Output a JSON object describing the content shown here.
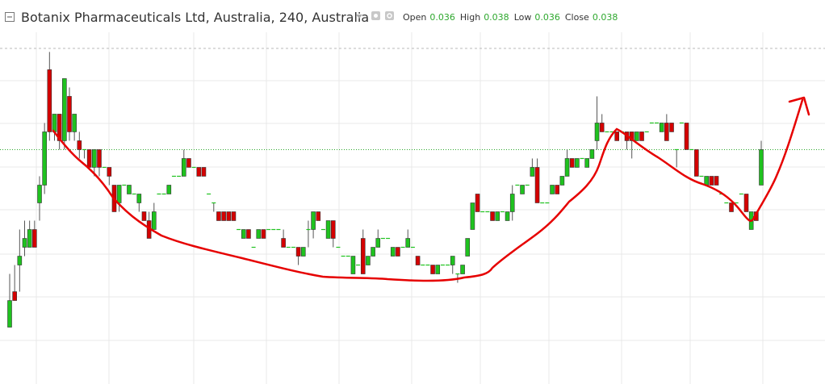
{
  "chart_data": {
    "type": "candlestick",
    "title": "Botanix Pharmaceuticals Ltd, Australia, 240, Australia",
    "legend": [
      {
        "label": "Open",
        "value": 0.036
      },
      {
        "label": "High",
        "value": 0.038
      },
      {
        "label": "Low",
        "value": 0.036
      },
      {
        "label": "Close",
        "value": 0.038
      }
    ],
    "up_color": "#1fc21f",
    "down_color": "#d40000",
    "value_color": "#2ea82e",
    "ylim": [
      0.0248,
      0.0437
    ],
    "ohlc": [
      [
        0.028,
        0.031,
        0.028,
        0.0295
      ],
      [
        0.03,
        0.0315,
        0.0295,
        0.0295
      ],
      [
        0.0315,
        0.0335,
        0.03,
        0.032
      ],
      [
        0.0325,
        0.034,
        0.032,
        0.033
      ],
      [
        0.0325,
        0.034,
        0.0325,
        0.0335
      ],
      [
        0.0335,
        0.034,
        0.0325,
        0.0325
      ],
      [
        0.035,
        0.0365,
        0.034,
        0.036
      ],
      [
        0.036,
        0.0395,
        0.0355,
        0.039
      ],
      [
        0.0425,
        0.0435,
        0.0385,
        0.039
      ],
      [
        0.039,
        0.04,
        0.0385,
        0.04
      ],
      [
        0.04,
        0.04,
        0.038,
        0.0385
      ],
      [
        0.0385,
        0.042,
        0.038,
        0.042
      ],
      [
        0.041,
        0.0415,
        0.0385,
        0.039
      ],
      [
        0.039,
        0.04,
        0.0385,
        0.04
      ],
      [
        0.0385,
        0.039,
        0.0375,
        0.038
      ],
      [
        0.038,
        0.038,
        0.0375,
        0.038
      ],
      [
        0.038,
        0.038,
        0.037,
        0.037
      ],
      [
        0.037,
        0.038,
        0.0365,
        0.038
      ],
      [
        0.038,
        0.038,
        0.0365,
        0.037
      ],
      [
        0.037,
        0.037,
        0.037,
        0.037
      ],
      [
        0.037,
        0.037,
        0.036,
        0.0365
      ],
      [
        0.036,
        0.036,
        0.0345,
        0.0345
      ],
      [
        0.035,
        0.036,
        0.0345,
        0.036
      ],
      [
        0.036,
        0.036,
        0.036,
        0.036
      ],
      [
        0.0355,
        0.036,
        0.0355,
        0.036
      ],
      [
        0.0355,
        0.0355,
        0.0355,
        0.0355
      ],
      [
        0.035,
        0.0355,
        0.0345,
        0.0355
      ],
      [
        0.0345,
        0.0345,
        0.034,
        0.034
      ],
      [
        0.034,
        0.0345,
        0.033,
        0.033
      ],
      [
        0.0335,
        0.035,
        0.0335,
        0.0345
      ],
      [
        0.0355,
        0.0355,
        0.0355,
        0.0355
      ],
      [
        0.0355,
        0.0355,
        0.0355,
        0.0355
      ],
      [
        0.0355,
        0.036,
        0.0355,
        0.036
      ],
      [
        0.0365,
        0.0365,
        0.0365,
        0.0365
      ],
      [
        0.0365,
        0.0365,
        0.0365,
        0.0365
      ],
      [
        0.0365,
        0.038,
        0.0365,
        0.0375
      ],
      [
        0.0375,
        0.0375,
        0.037,
        0.037
      ],
      [
        0.037,
        0.037,
        0.037,
        0.037
      ],
      [
        0.037,
        0.037,
        0.0365,
        0.0365
      ],
      [
        0.037,
        0.037,
        0.0365,
        0.0365
      ],
      [
        0.0355,
        0.0355,
        0.0355,
        0.0355
      ],
      [
        0.035,
        0.035,
        0.0345,
        0.035
      ],
      [
        0.0345,
        0.0345,
        0.034,
        0.034
      ],
      [
        0.0345,
        0.0345,
        0.034,
        0.034
      ],
      [
        0.0345,
        0.0345,
        0.034,
        0.034
      ],
      [
        0.0345,
        0.0345,
        0.034,
        0.034
      ],
      [
        0.0335,
        0.0335,
        0.0335,
        0.0335
      ],
      [
        0.033,
        0.0335,
        0.033,
        0.0335
      ],
      [
        0.0335,
        0.0335,
        0.033,
        0.033
      ],
      [
        0.0325,
        0.0325,
        0.0325,
        0.0325
      ],
      [
        0.033,
        0.0335,
        0.033,
        0.0335
      ],
      [
        0.0335,
        0.0335,
        0.033,
        0.033
      ],
      [
        0.0335,
        0.0335,
        0.0335,
        0.0335
      ],
      [
        0.0335,
        0.0335,
        0.0335,
        0.0335
      ],
      [
        0.0335,
        0.0335,
        0.0335,
        0.0335
      ],
      [
        0.033,
        0.0335,
        0.0325,
        0.0325
      ],
      [
        0.0325,
        0.0325,
        0.0325,
        0.0325
      ],
      [
        0.0325,
        0.0325,
        0.0325,
        0.0325
      ],
      [
        0.0325,
        0.0325,
        0.0315,
        0.032
      ],
      [
        0.032,
        0.0325,
        0.032,
        0.0325
      ],
      [
        0.0335,
        0.034,
        0.0325,
        0.0335
      ],
      [
        0.0335,
        0.0345,
        0.033,
        0.0345
      ],
      [
        0.0345,
        0.0345,
        0.034,
        0.034
      ],
      [
        0.0335,
        0.0335,
        0.0335,
        0.0335
      ],
      [
        0.033,
        0.034,
        0.033,
        0.034
      ],
      [
        0.034,
        0.034,
        0.0325,
        0.033
      ],
      [
        0.0325,
        0.0325,
        0.0325,
        0.0325
      ],
      [
        0.032,
        0.032,
        0.032,
        0.032
      ],
      [
        0.032,
        0.032,
        0.032,
        0.032
      ],
      [
        0.031,
        0.032,
        0.031,
        0.032
      ],
      [
        0.0315,
        0.0315,
        0.0315,
        0.0315
      ],
      [
        0.033,
        0.0335,
        0.031,
        0.031
      ],
      [
        0.0315,
        0.032,
        0.0315,
        0.032
      ],
      [
        0.032,
        0.0325,
        0.032,
        0.0325
      ],
      [
        0.0325,
        0.0335,
        0.0325,
        0.033
      ],
      [
        0.033,
        0.033,
        0.033,
        0.033
      ],
      [
        0.033,
        0.033,
        0.033,
        0.033
      ],
      [
        0.032,
        0.0325,
        0.032,
        0.0325
      ],
      [
        0.0325,
        0.0325,
        0.032,
        0.032
      ],
      [
        0.0325,
        0.0325,
        0.0325,
        0.0325
      ],
      [
        0.0325,
        0.0335,
        0.0325,
        0.033
      ],
      [
        0.0325,
        0.0325,
        0.0325,
        0.0325
      ],
      [
        0.032,
        0.032,
        0.0315,
        0.0315
      ],
      [
        0.0315,
        0.0315,
        0.0315,
        0.0315
      ],
      [
        0.0315,
        0.0315,
        0.0315,
        0.0315
      ],
      [
        0.0315,
        0.0315,
        0.031,
        0.031
      ],
      [
        0.031,
        0.0315,
        0.031,
        0.0315
      ],
      [
        0.0315,
        0.0315,
        0.0315,
        0.0315
      ],
      [
        0.0315,
        0.0315,
        0.0315,
        0.0315
      ],
      [
        0.0315,
        0.032,
        0.031,
        0.032
      ],
      [
        0.031,
        0.031,
        0.0305,
        0.031
      ],
      [
        0.031,
        0.0315,
        0.031,
        0.0315
      ],
      [
        0.032,
        0.033,
        0.032,
        0.033
      ],
      [
        0.0335,
        0.035,
        0.0335,
        0.035
      ],
      [
        0.0355,
        0.0355,
        0.0345,
        0.0345
      ],
      [
        0.0345,
        0.0345,
        0.0345,
        0.0345
      ],
      [
        0.0345,
        0.0345,
        0.0345,
        0.0345
      ],
      [
        0.0345,
        0.0345,
        0.034,
        0.034
      ],
      [
        0.034,
        0.0345,
        0.034,
        0.0345
      ],
      [
        0.0345,
        0.0345,
        0.0345,
        0.0345
      ],
      [
        0.034,
        0.0345,
        0.034,
        0.0345
      ],
      [
        0.0345,
        0.036,
        0.034,
        0.0355
      ],
      [
        0.036,
        0.036,
        0.036,
        0.036
      ],
      [
        0.0355,
        0.036,
        0.0355,
        0.036
      ],
      [
        0.036,
        0.036,
        0.036,
        0.036
      ],
      [
        0.0365,
        0.0375,
        0.0365,
        0.037
      ],
      [
        0.037,
        0.0375,
        0.035,
        0.035
      ],
      [
        0.035,
        0.035,
        0.035,
        0.035
      ],
      [
        0.035,
        0.035,
        0.035,
        0.035
      ],
      [
        0.0355,
        0.036,
        0.0355,
        0.036
      ],
      [
        0.036,
        0.036,
        0.0355,
        0.0355
      ],
      [
        0.036,
        0.0365,
        0.036,
        0.0365
      ],
      [
        0.0365,
        0.038,
        0.0365,
        0.0375
      ],
      [
        0.0375,
        0.0375,
        0.037,
        0.037
      ],
      [
        0.037,
        0.0375,
        0.037,
        0.0375
      ],
      [
        0.0375,
        0.0375,
        0.0375,
        0.0375
      ],
      [
        0.037,
        0.0375,
        0.037,
        0.0375
      ],
      [
        0.0375,
        0.038,
        0.0375,
        0.038
      ],
      [
        0.0385,
        0.041,
        0.038,
        0.0395
      ],
      [
        0.0395,
        0.04,
        0.039,
        0.039
      ],
      [
        0.039,
        0.039,
        0.039,
        0.039
      ],
      [
        0.039,
        0.039,
        0.039,
        0.039
      ],
      [
        0.039,
        0.039,
        0.0385,
        0.0385
      ],
      [
        0.039,
        0.039,
        0.039,
        0.039
      ],
      [
        0.039,
        0.039,
        0.038,
        0.0385
      ],
      [
        0.039,
        0.039,
        0.0375,
        0.0385
      ],
      [
        0.0385,
        0.039,
        0.0385,
        0.039
      ],
      [
        0.039,
        0.039,
        0.0385,
        0.0385
      ],
      [
        0.039,
        0.039,
        0.039,
        0.039
      ],
      [
        0.0395,
        0.0395,
        0.0395,
        0.0395
      ],
      [
        0.0395,
        0.0395,
        0.0395,
        0.0395
      ],
      [
        0.039,
        0.0395,
        0.039,
        0.0395
      ],
      [
        0.0395,
        0.04,
        0.0385,
        0.0385
      ],
      [
        0.0395,
        0.0395,
        0.039,
        0.039
      ],
      [
        0.038,
        0.038,
        0.037,
        0.038
      ],
      [
        0.0395,
        0.0395,
        0.0395,
        0.0395
      ],
      [
        0.0395,
        0.0395,
        0.038,
        0.038
      ],
      [
        0.038,
        0.038,
        0.038,
        0.038
      ],
      [
        0.038,
        0.038,
        0.0365,
        0.0365
      ],
      [
        0.0365,
        0.0365,
        0.0365,
        0.0365
      ],
      [
        0.036,
        0.0365,
        0.036,
        0.0365
      ],
      [
        0.0365,
        0.0365,
        0.036,
        0.036
      ],
      [
        0.0365,
        0.0365,
        0.036,
        0.036
      ],
      [
        0.0355,
        0.0355,
        0.0355,
        0.0355
      ],
      [
        0.035,
        0.035,
        0.035,
        0.035
      ],
      [
        0.035,
        0.035,
        0.0345,
        0.0345
      ],
      [
        0.035,
        0.035,
        0.035,
        0.035
      ],
      [
        0.0355,
        0.0355,
        0.0355,
        0.0355
      ],
      [
        0.0355,
        0.0355,
        0.0345,
        0.0345
      ],
      [
        0.0335,
        0.0345,
        0.0335,
        0.0345
      ],
      [
        0.0345,
        0.0345,
        0.034,
        0.034
      ],
      [
        0.036,
        0.0385,
        0.036,
        0.038
      ]
    ]
  }
}
